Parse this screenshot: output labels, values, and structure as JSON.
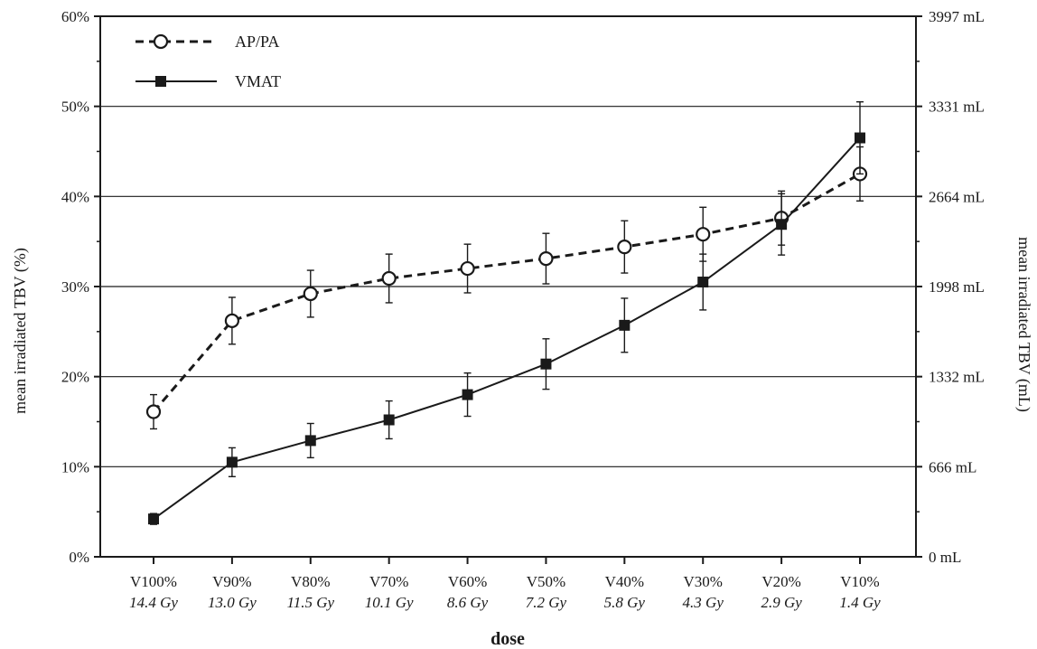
{
  "chart_data": {
    "type": "line",
    "xlabel": "dose",
    "ylabel": "mean irradiated TBV  (%)",
    "y2label": "mean irradiated TBV (mL)",
    "ylim": [
      0,
      60
    ],
    "y_ticks": [
      "0%",
      "10%",
      "20%",
      "30%",
      "40%",
      "50%",
      "60%"
    ],
    "y2_ticks": [
      "0 mL",
      "666 mL",
      "1332 mL",
      "1998 mL",
      "2664 mL",
      "3331 mL",
      "3997 mL"
    ],
    "grid": "horizontal",
    "legend_position": "top-left",
    "categories": [
      "V100%",
      "V90%",
      "V80%",
      "V70%",
      "V60%",
      "V50%",
      "V40%",
      "V30%",
      "V20%",
      "V10%"
    ],
    "dose_labels": [
      "14.4 Gy",
      "13.0 Gy",
      "11.5 Gy",
      "10.1 Gy",
      "8.6 Gy",
      "7.2 Gy",
      "5.8 Gy",
      "4.3 Gy",
      "2.9 Gy",
      "1.4 Gy"
    ],
    "series": [
      {
        "name": "AP/PA",
        "style": "dashed",
        "marker": "open-circle",
        "values": [
          16.1,
          26.2,
          29.2,
          30.9,
          32.0,
          33.1,
          34.4,
          35.8,
          37.6,
          42.5
        ],
        "error": [
          1.9,
          2.6,
          2.6,
          2.7,
          2.7,
          2.8,
          2.9,
          3.0,
          3.0,
          3.0
        ]
      },
      {
        "name": "VMAT",
        "style": "solid",
        "marker": "filled-square",
        "values": [
          4.2,
          10.5,
          12.9,
          15.2,
          18.0,
          21.4,
          25.7,
          30.5,
          36.9,
          46.5
        ],
        "error": [
          0.6,
          1.6,
          1.9,
          2.1,
          2.4,
          2.8,
          3.0,
          3.1,
          3.4,
          4.0
        ]
      }
    ]
  },
  "colors": {
    "line": "#1a1a1a",
    "grid": "#1a1a1a",
    "background": "#ffffff"
  }
}
